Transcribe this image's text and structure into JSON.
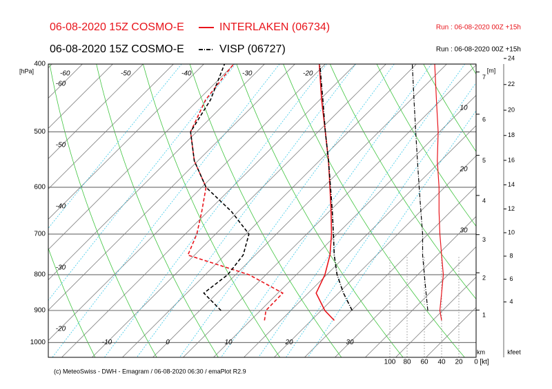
{
  "chart_data": {
    "type": "emagram",
    "series": [
      {
        "name": "INTERLAKEN (06734)",
        "label": "06-08-2020 15Z COSMO-E",
        "run": "Run : 06-08-2020 00Z +15h",
        "color": "#e8141b",
        "style": "solid",
        "temperature": [
          23.8,
          20.6,
          16.3,
          14.7,
          12.3,
          9.1,
          5.3,
          1.1,
          -3.5,
          -8.8,
          -14.7,
          -21.0
        ],
        "dewpoint": [
          12.3,
          10.9,
          10.8,
          2.2,
          -11.1,
          -13.1,
          -16.0,
          -19.3,
          -25.6,
          -31.0,
          -33.8,
          -35.1
        ],
        "wind_speed": [
          40,
          42,
          40,
          38,
          40,
          42,
          43,
          43,
          45,
          44,
          46,
          48
        ]
      },
      {
        "name": "VISP (06727)",
        "label": "06-08-2020 15Z COSMO-E",
        "run": "Run : 06-08-2020 00Z +15h",
        "color": "#000000",
        "style": "dashdot",
        "temperature": [
          null,
          25.1,
          20.8,
          16.7,
          13.0,
          9.4,
          5.5,
          1.2,
          -3.5,
          -8.8,
          -14.5,
          -20.9
        ],
        "dewpoint": [
          null,
          3.5,
          -2.2,
          -1.3,
          -2.0,
          -4.5,
          -11.1,
          -19.3,
          -25.6,
          -31.0,
          -33.0,
          -36.6
        ],
        "wind_speed": [
          null,
          56,
          58,
          60,
          62,
          62,
          64,
          66,
          68,
          70,
          72,
          74
        ]
      }
    ],
    "pressure": [
      930,
      900,
      850,
      800,
      750,
      700,
      650,
      600,
      550,
      500,
      450,
      400
    ],
    "ylim": [
      1050,
      400
    ],
    "yticks": [
      400,
      500,
      600,
      700,
      800,
      900,
      1000
    ],
    "ylabel": "[hPa]",
    "log_scale": true,
    "isotherm_labels_top": [
      -60,
      -50,
      -40,
      -30,
      -20
    ],
    "isotherm_labels_bottom": [
      -10,
      0,
      10,
      20,
      30
    ],
    "left_labels": [
      -60,
      -50,
      -40,
      -30,
      -20
    ],
    "right_labels": [
      10,
      20,
      30
    ],
    "wind_xlim": [
      100,
      0
    ],
    "wind_ticks": [
      100,
      80,
      60,
      40,
      20,
      0
    ],
    "wind_unit": "[kt]",
    "height_ticks": [
      1,
      2,
      3,
      4,
      5,
      6,
      7
    ],
    "height_label_top": "[m]",
    "height_label_bottom": "km",
    "kfeet_ticks": [
      4,
      6,
      8,
      10,
      12,
      14,
      16,
      18,
      20,
      22,
      24
    ],
    "kfeet_label": "kfeet",
    "footer": "(c) MeteoSwiss - DWH - Emagram / 06-08-2020  06:30 / emaPlot R2.9"
  }
}
